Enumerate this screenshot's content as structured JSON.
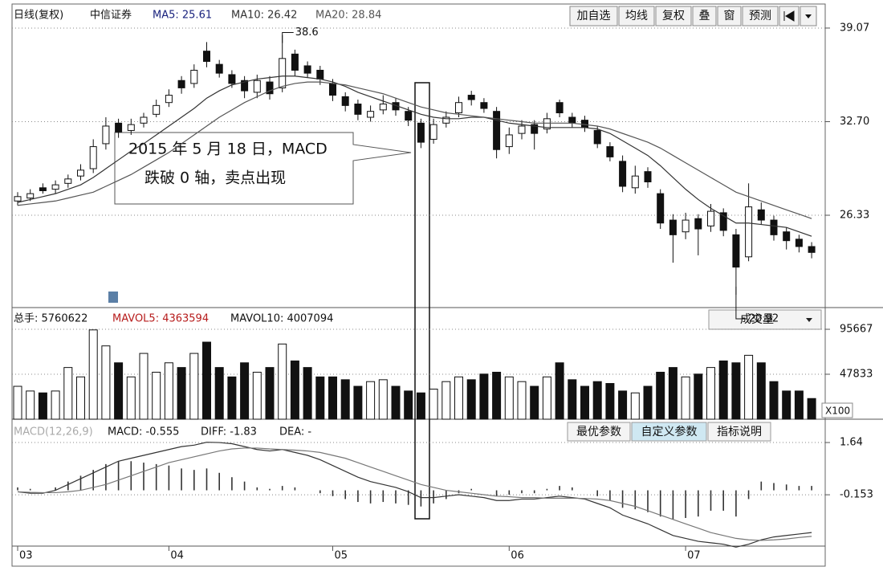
{
  "ui": {
    "header": {
      "period": "日线(复权)",
      "stock": "中信证券",
      "ma5": "MA5: 25.61",
      "ma10": "MA10: 26.42",
      "ma20": "MA20: 28.84"
    },
    "buttons": [
      "加自选",
      "均线",
      "复权",
      "叠",
      "窗",
      "预测"
    ],
    "volume_header": {
      "total": "总手: 5760622",
      "mavol5": "MAVOL5: 4363594",
      "mavol10": "MAVOL10: 4007094",
      "selector": "成交量",
      "unit": "X100"
    },
    "macd_header": {
      "name": "MACD(12,26,9)",
      "macd": "MACD: -0.555",
      "diff": "DIFF: -1.83",
      "dea": "DEA: -"
    },
    "macd_buttons": [
      "最优参数",
      "自定义参数",
      "指标说明"
    ],
    "callout": [
      "2015 年 5 月 18 日，MACD",
      "跌破 0 轴，卖点出现"
    ]
  },
  "chart_data": [
    {
      "type": "candlestick",
      "categories": [
        "03",
        null,
        null,
        null,
        null,
        null,
        null,
        null,
        null,
        null,
        null,
        null,
        "04",
        null,
        null,
        null,
        null,
        null,
        null,
        null,
        null,
        null,
        null,
        null,
        null,
        "05",
        null,
        null,
        null,
        null,
        null,
        null,
        null,
        null,
        null,
        null,
        null,
        null,
        null,
        "06",
        null,
        null,
        null,
        null,
        null,
        null,
        null,
        null,
        null,
        null,
        null,
        null,
        null,
        "07",
        null,
        null,
        null,
        null,
        null,
        null,
        null,
        null,
        null,
        null
      ],
      "open": [
        27.3,
        27.5,
        28.2,
        28.1,
        28.5,
        29.0,
        29.5,
        31.2,
        32.6,
        32.1,
        32.6,
        33.2,
        34.0,
        35.5,
        35.3,
        37.5,
        36.6,
        35.9,
        35.5,
        34.7,
        35.4,
        35.0,
        37.3,
        36.5,
        36.2,
        35.3,
        34.4,
        33.9,
        33.0,
        33.5,
        34.0,
        33.4,
        32.6,
        31.5,
        32.6,
        33.3,
        34.5,
        34.0,
        33.4,
        31.0,
        31.9,
        32.5,
        32.2,
        34.0,
        33.0,
        32.8,
        32.1,
        31.0,
        30.0,
        28.2,
        29.3,
        27.8,
        26.0,
        25.2,
        26.1,
        25.6,
        26.5,
        25.0,
        23.5,
        26.7,
        26.0,
        25.2,
        24.7,
        24.2
      ],
      "high": [
        27.9,
        28.1,
        28.5,
        28.7,
        29.1,
        29.8,
        31.5,
        33.0,
        32.9,
        32.9,
        33.3,
        34.2,
        34.9,
        35.8,
        36.6,
        38.12,
        36.9,
        36.2,
        35.8,
        35.9,
        35.8,
        38.6,
        37.6,
        36.8,
        36.5,
        35.6,
        34.7,
        34.2,
        33.8,
        34.5,
        34.3,
        33.7,
        32.9,
        32.9,
        33.4,
        34.4,
        34.8,
        34.3,
        33.7,
        32.3,
        32.8,
        32.8,
        33.3,
        34.2,
        33.3,
        33.1,
        32.4,
        31.3,
        30.4,
        29.7,
        29.6,
        28.1,
        26.4,
        26.5,
        26.4,
        27.1,
        26.8,
        25.4,
        28.5,
        27.2,
        26.3,
        25.5,
        25.0,
        24.5
      ],
      "low": [
        27.0,
        27.3,
        27.8,
        27.8,
        28.2,
        28.7,
        29.2,
        30.8,
        31.6,
        31.8,
        32.3,
        33.0,
        33.7,
        34.6,
        35.0,
        36.4,
        35.7,
        35.0,
        34.3,
        34.3,
        34.2,
        34.7,
        35.8,
        35.7,
        35.2,
        34.1,
        33.4,
        32.8,
        32.7,
        33.2,
        33.1,
        32.4,
        30.9,
        31.2,
        32.3,
        33.0,
        33.8,
        33.3,
        30.2,
        30.5,
        31.5,
        30.8,
        31.9,
        33.0,
        32.3,
        32.0,
        30.9,
        30.0,
        27.9,
        27.8,
        28.2,
        25.4,
        23.1,
        24.7,
        23.6,
        25.2,
        24.9,
        20.92,
        23.2,
        25.7,
        24.6,
        24.0,
        23.8,
        23.4
      ],
      "close": [
        27.6,
        27.8,
        28.0,
        28.4,
        28.8,
        29.4,
        31.0,
        32.4,
        32.0,
        32.5,
        33.0,
        33.8,
        34.5,
        35.0,
        36.2,
        36.8,
        36.0,
        35.3,
        34.8,
        35.5,
        34.6,
        37.0,
        36.2,
        36.0,
        35.6,
        34.5,
        33.8,
        33.2,
        33.4,
        33.9,
        33.5,
        32.8,
        31.3,
        32.5,
        33.0,
        34.0,
        34.2,
        33.6,
        30.8,
        31.8,
        32.4,
        31.9,
        32.9,
        33.3,
        32.6,
        32.3,
        31.2,
        30.3,
        28.3,
        29.0,
        28.6,
        25.8,
        25.0,
        26.0,
        25.4,
        26.6,
        25.3,
        22.8,
        26.9,
        26.0,
        25.0,
        24.6,
        24.2,
        23.8
      ],
      "series": [
        {
          "color": "#333333",
          "values": [
            27.2,
            27.4,
            27.6,
            27.8,
            28.1,
            28.4,
            28.9,
            29.5,
            30.1,
            30.7,
            31.2,
            31.8,
            32.4,
            33.0,
            33.6,
            34.3,
            34.8,
            35.2,
            35.4,
            35.6,
            35.7,
            35.8,
            35.8,
            35.7,
            35.6,
            35.4,
            35.1,
            34.7,
            34.4,
            34.1,
            33.8,
            33.5,
            33.2,
            33.0,
            32.9,
            32.9,
            33.0,
            33.0,
            32.8,
            32.6,
            32.5,
            32.4,
            32.3,
            32.3,
            32.3,
            32.3,
            32.2,
            31.9,
            31.4,
            30.9,
            30.4,
            29.7,
            28.9,
            28.1,
            27.4,
            26.8,
            26.3,
            25.8,
            25.8,
            25.7,
            25.6,
            25.5,
            25.2,
            24.9
          ]
        },
        {
          "color": "#555555",
          "values": [
            27.0,
            27.1,
            27.2,
            27.3,
            27.5,
            27.7,
            27.9,
            28.3,
            28.7,
            29.1,
            29.6,
            30.1,
            30.6,
            31.2,
            31.8,
            32.4,
            33.0,
            33.5,
            34.0,
            34.4,
            34.8,
            35.1,
            35.3,
            35.4,
            35.4,
            35.3,
            35.2,
            35.0,
            34.8,
            34.6,
            34.3,
            34.0,
            33.7,
            33.5,
            33.3,
            33.2,
            33.1,
            33.0,
            32.9,
            32.8,
            32.7,
            32.6,
            32.6,
            32.6,
            32.6,
            32.5,
            32.4,
            32.2,
            31.9,
            31.6,
            31.3,
            30.9,
            30.4,
            29.9,
            29.4,
            28.9,
            28.4,
            27.9,
            27.6,
            27.3,
            27.0,
            26.7,
            26.4,
            26.1
          ]
        }
      ],
      "ylim": [
        20.1,
        39.45
      ],
      "yticks": [
        39.07,
        {
          "value": 32.7,
          "label": "32.70"
        },
        26.33
      ],
      "grid": true
    },
    {
      "type": "bar",
      "values": [
        35000,
        30000,
        28000,
        30000,
        55000,
        45000,
        95000,
        78000,
        60000,
        45000,
        70000,
        50000,
        60000,
        55000,
        70000,
        82000,
        55000,
        45000,
        60000,
        50000,
        55000,
        80000,
        62000,
        55000,
        45000,
        45000,
        42000,
        35000,
        40000,
        42000,
        35000,
        30000,
        28000,
        32000,
        40000,
        45000,
        42000,
        48000,
        50000,
        45000,
        40000,
        35000,
        45000,
        60000,
        42000,
        35000,
        40000,
        38000,
        30000,
        28000,
        35000,
        50000,
        55000,
        45000,
        48000,
        55000,
        62000,
        60000,
        68000,
        60000,
        40000,
        30000,
        30000,
        22000
      ],
      "ylim": [
        0,
        108500
      ],
      "yticks": [
        95667,
        47833
      ],
      "grid": true
    },
    {
      "type": "macd",
      "values": [
        0.1,
        0.05,
        0.0,
        0.1,
        0.3,
        0.5,
        0.7,
        0.9,
        1.0,
        1.0,
        0.95,
        0.9,
        0.85,
        0.75,
        0.7,
        0.75,
        0.6,
        0.45,
        0.3,
        0.1,
        0.05,
        0.15,
        0.1,
        0.0,
        -0.1,
        -0.2,
        -0.3,
        -0.4,
        -0.45,
        -0.4,
        -0.45,
        -0.5,
        -0.555,
        -0.45,
        -0.3,
        -0.1,
        0.05,
        0.0,
        -0.2,
        -0.15,
        -0.1,
        -0.1,
        0.05,
        0.15,
        0.1,
        0.0,
        -0.2,
        -0.35,
        -0.6,
        -0.65,
        -0.75,
        -0.9,
        -1.0,
        -0.95,
        -0.9,
        -0.7,
        -0.7,
        -0.9,
        -0.3,
        0.3,
        0.25,
        0.2,
        0.15,
        0.15
      ],
      "series": [
        {
          "color": "#333333",
          "values": [
            -0.05,
            -0.1,
            -0.1,
            0.0,
            0.2,
            0.4,
            0.6,
            0.8,
            1.0,
            1.1,
            1.2,
            1.3,
            1.4,
            1.5,
            1.55,
            1.65,
            1.64,
            1.6,
            1.5,
            1.4,
            1.35,
            1.4,
            1.3,
            1.2,
            1.05,
            0.85,
            0.65,
            0.45,
            0.3,
            0.2,
            0.1,
            -0.05,
            -0.25,
            -0.25,
            -0.2,
            -0.15,
            -0.2,
            -0.25,
            -0.35,
            -0.35,
            -0.3,
            -0.3,
            -0.25,
            -0.2,
            -0.25,
            -0.3,
            -0.45,
            -0.6,
            -0.85,
            -1.0,
            -1.15,
            -1.35,
            -1.55,
            -1.65,
            -1.75,
            -1.8,
            -1.85,
            -1.95,
            -1.85,
            -1.7,
            -1.6,
            -1.55,
            -1.5,
            -1.45
          ]
        },
        {
          "color": "#777777",
          "values": [
            -0.05,
            -0.07,
            -0.08,
            -0.08,
            -0.05,
            0.0,
            0.1,
            0.2,
            0.35,
            0.5,
            0.65,
            0.8,
            0.95,
            1.05,
            1.15,
            1.25,
            1.35,
            1.42,
            1.45,
            1.45,
            1.42,
            1.4,
            1.38,
            1.35,
            1.3,
            1.2,
            1.1,
            0.95,
            0.8,
            0.65,
            0.5,
            0.35,
            0.2,
            0.1,
            0.0,
            -0.05,
            -0.1,
            -0.15,
            -0.2,
            -0.22,
            -0.25,
            -0.25,
            -0.27,
            -0.27,
            -0.27,
            -0.28,
            -0.3,
            -0.35,
            -0.45,
            -0.55,
            -0.7,
            -0.85,
            -1.0,
            -1.15,
            -1.3,
            -1.45,
            -1.55,
            -1.65,
            -1.7,
            -1.72,
            -1.7,
            -1.67,
            -1.62,
            -1.58
          ]
        }
      ],
      "ylim": [
        -2.19,
        2.22
      ],
      "yticks": [
        1.64,
        -0.153
      ],
      "grid": true
    }
  ]
}
